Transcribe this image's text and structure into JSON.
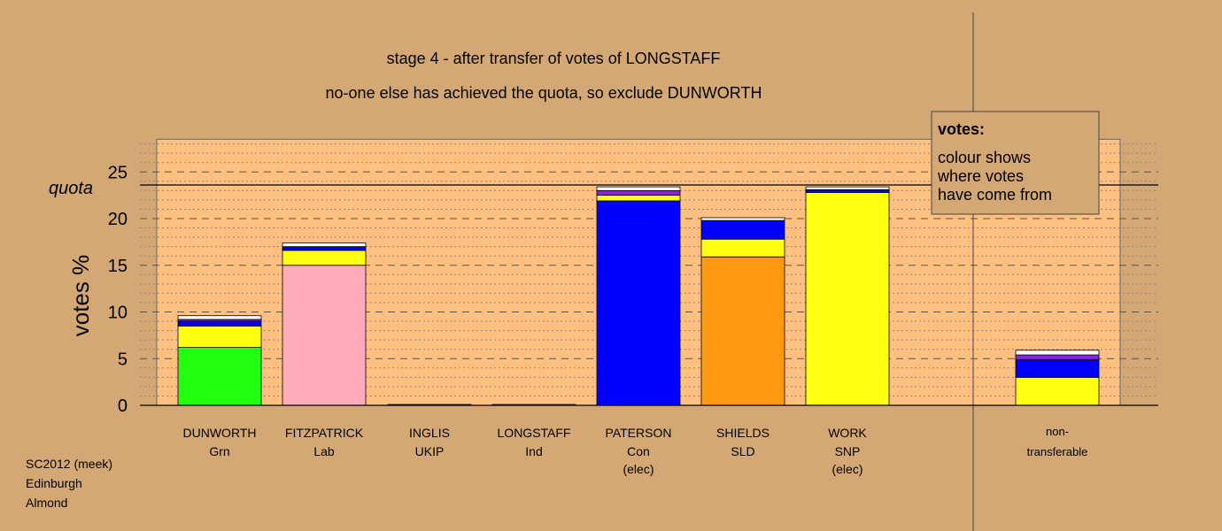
{
  "chart_data": {
    "type": "bar",
    "stacked": true,
    "title": "stage 4 - after transfer of votes of LONGSTAFF",
    "subtitle": "no-one else has achieved the quota, so exclude DUNWORTH",
    "ylabel": "votes %",
    "ylim": [
      0,
      28.5
    ],
    "yticks": [
      0,
      5,
      10,
      15,
      20,
      25
    ],
    "quota": 23.6,
    "quota_label": "quota",
    "grid": true,
    "categories": [
      {
        "name": "DUNWORTH",
        "party": "Grn",
        "note": ""
      },
      {
        "name": "FITZPATRICK",
        "party": "Lab",
        "note": ""
      },
      {
        "name": "INGLIS",
        "party": "UKIP",
        "note": ""
      },
      {
        "name": "LONGSTAFF",
        "party": "Ind",
        "note": ""
      },
      {
        "name": "PATERSON",
        "party": "Con",
        "note": "(elec)"
      },
      {
        "name": "SHIELDS",
        "party": "SLD",
        "note": ""
      },
      {
        "name": "WORK",
        "party": "SNP",
        "note": "(elec)"
      }
    ],
    "nontransferable_label": [
      "non-",
      "transferable"
    ],
    "stacks": [
      [
        {
          "value": 6.2,
          "color": "#22ff11"
        },
        {
          "value": 2.3,
          "color": "#ffff11"
        },
        {
          "value": 0.5,
          "color": "#0000ff"
        },
        {
          "value": 0.2,
          "color": "#8822dd"
        },
        {
          "value": 0.4,
          "color": "#ffffff"
        }
      ],
      [
        {
          "value": 15.0,
          "color": "#ffaabb"
        },
        {
          "value": 1.6,
          "color": "#ffff11"
        },
        {
          "value": 0.4,
          "color": "#0000ff"
        },
        {
          "value": 0.4,
          "color": "#ffffff"
        }
      ],
      [
        {
          "value": 0.05,
          "color": "#8822dd"
        }
      ],
      [
        {
          "value": 0.05,
          "color": "#ffffff"
        }
      ],
      [
        {
          "value": 21.9,
          "color": "#0000ff"
        },
        {
          "value": 0.6,
          "color": "#ffff11"
        },
        {
          "value": 0.5,
          "color": "#8822dd"
        },
        {
          "value": 0.4,
          "color": "#ffffff"
        }
      ],
      [
        {
          "value": 15.9,
          "color": "#ff9911"
        },
        {
          "value": 1.9,
          "color": "#ffff11"
        },
        {
          "value": 2.0,
          "color": "#0000ff"
        },
        {
          "value": 0.3,
          "color": "#ffffff"
        }
      ],
      [
        {
          "value": 22.8,
          "color": "#ffff11"
        },
        {
          "value": 0.3,
          "color": "#0000ff"
        },
        {
          "value": 0.3,
          "color": "#ffffff"
        }
      ],
      [
        {
          "value": 3.0,
          "color": "#ffff11"
        },
        {
          "value": 1.9,
          "color": "#0000ff"
        },
        {
          "value": 0.5,
          "color": "#8822dd"
        },
        {
          "value": 0.5,
          "color": "#ffffff"
        }
      ]
    ],
    "legend": {
      "title": "votes:",
      "lines": [
        "colour shows",
        "where votes",
        "have come from"
      ]
    }
  },
  "footer": [
    "SC2012 (meek)",
    "Edinburgh",
    "Almond"
  ]
}
